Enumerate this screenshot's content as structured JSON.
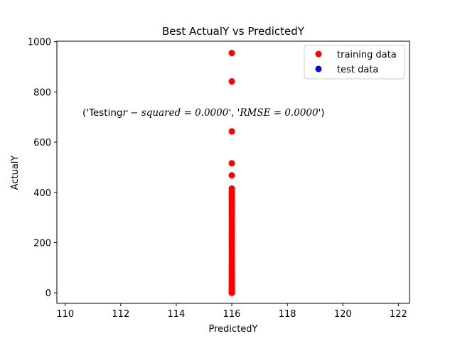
{
  "chart_data": {
    "type": "scatter",
    "title": "Best ActualY vs PredictedY",
    "xlabel": "PredictedY",
    "ylabel": "ActualY",
    "xlim": [
      109.7,
      122.4
    ],
    "ylim": [
      -42,
      1002
    ],
    "xticks": [
      110,
      112,
      114,
      116,
      118,
      120,
      122
    ],
    "xtick_labels": [
      "110",
      "112",
      "114",
      "116",
      "118",
      "120",
      "122"
    ],
    "yticks": [
      0,
      200,
      400,
      600,
      800,
      1000
    ],
    "ytick_labels": [
      "0",
      "200",
      "400",
      "600",
      "800",
      "1000"
    ],
    "grid": false,
    "legend_position": "upper-right",
    "annotation": {
      "prefix": "('Testing",
      "r2_math": "r − squared = 0.0000",
      "middle": "', '",
      "rmse_math": "RMSE = 0.0000",
      "suffix": "')"
    },
    "series": [
      {
        "name": "training data",
        "color": "#ff0000",
        "x": [
          116,
          116,
          116,
          116,
          116,
          116,
          116,
          116,
          116,
          116,
          116,
          116,
          116,
          116,
          116,
          116,
          116,
          116,
          116,
          116,
          116,
          116,
          116,
          116,
          116,
          116,
          116,
          116,
          116,
          116,
          116,
          116,
          116,
          116,
          116,
          116,
          116,
          116,
          116,
          116,
          116,
          116,
          116,
          116,
          116,
          116,
          116,
          116,
          116,
          116,
          116,
          116,
          116,
          116,
          116,
          116,
          116,
          116,
          116,
          116,
          116,
          116,
          116,
          116,
          116,
          116
        ],
        "y": [
          955,
          842,
          643,
          516,
          468,
          415,
          405,
          395,
          385,
          375,
          365,
          355,
          345,
          335,
          325,
          315,
          305,
          295,
          285,
          275,
          265,
          255,
          245,
          235,
          225,
          215,
          205,
          195,
          185,
          175,
          165,
          155,
          145,
          135,
          125,
          115,
          105,
          95,
          88,
          80,
          72,
          65,
          58,
          50,
          44,
          38,
          32,
          27,
          22,
          18,
          14,
          11,
          9,
          7,
          6,
          5,
          4,
          3,
          2,
          1.5,
          1,
          0.5,
          0.3,
          0.2,
          0.1,
          0
        ]
      },
      {
        "name": "test data",
        "color": "#0000ff",
        "x": [],
        "y": []
      }
    ]
  }
}
